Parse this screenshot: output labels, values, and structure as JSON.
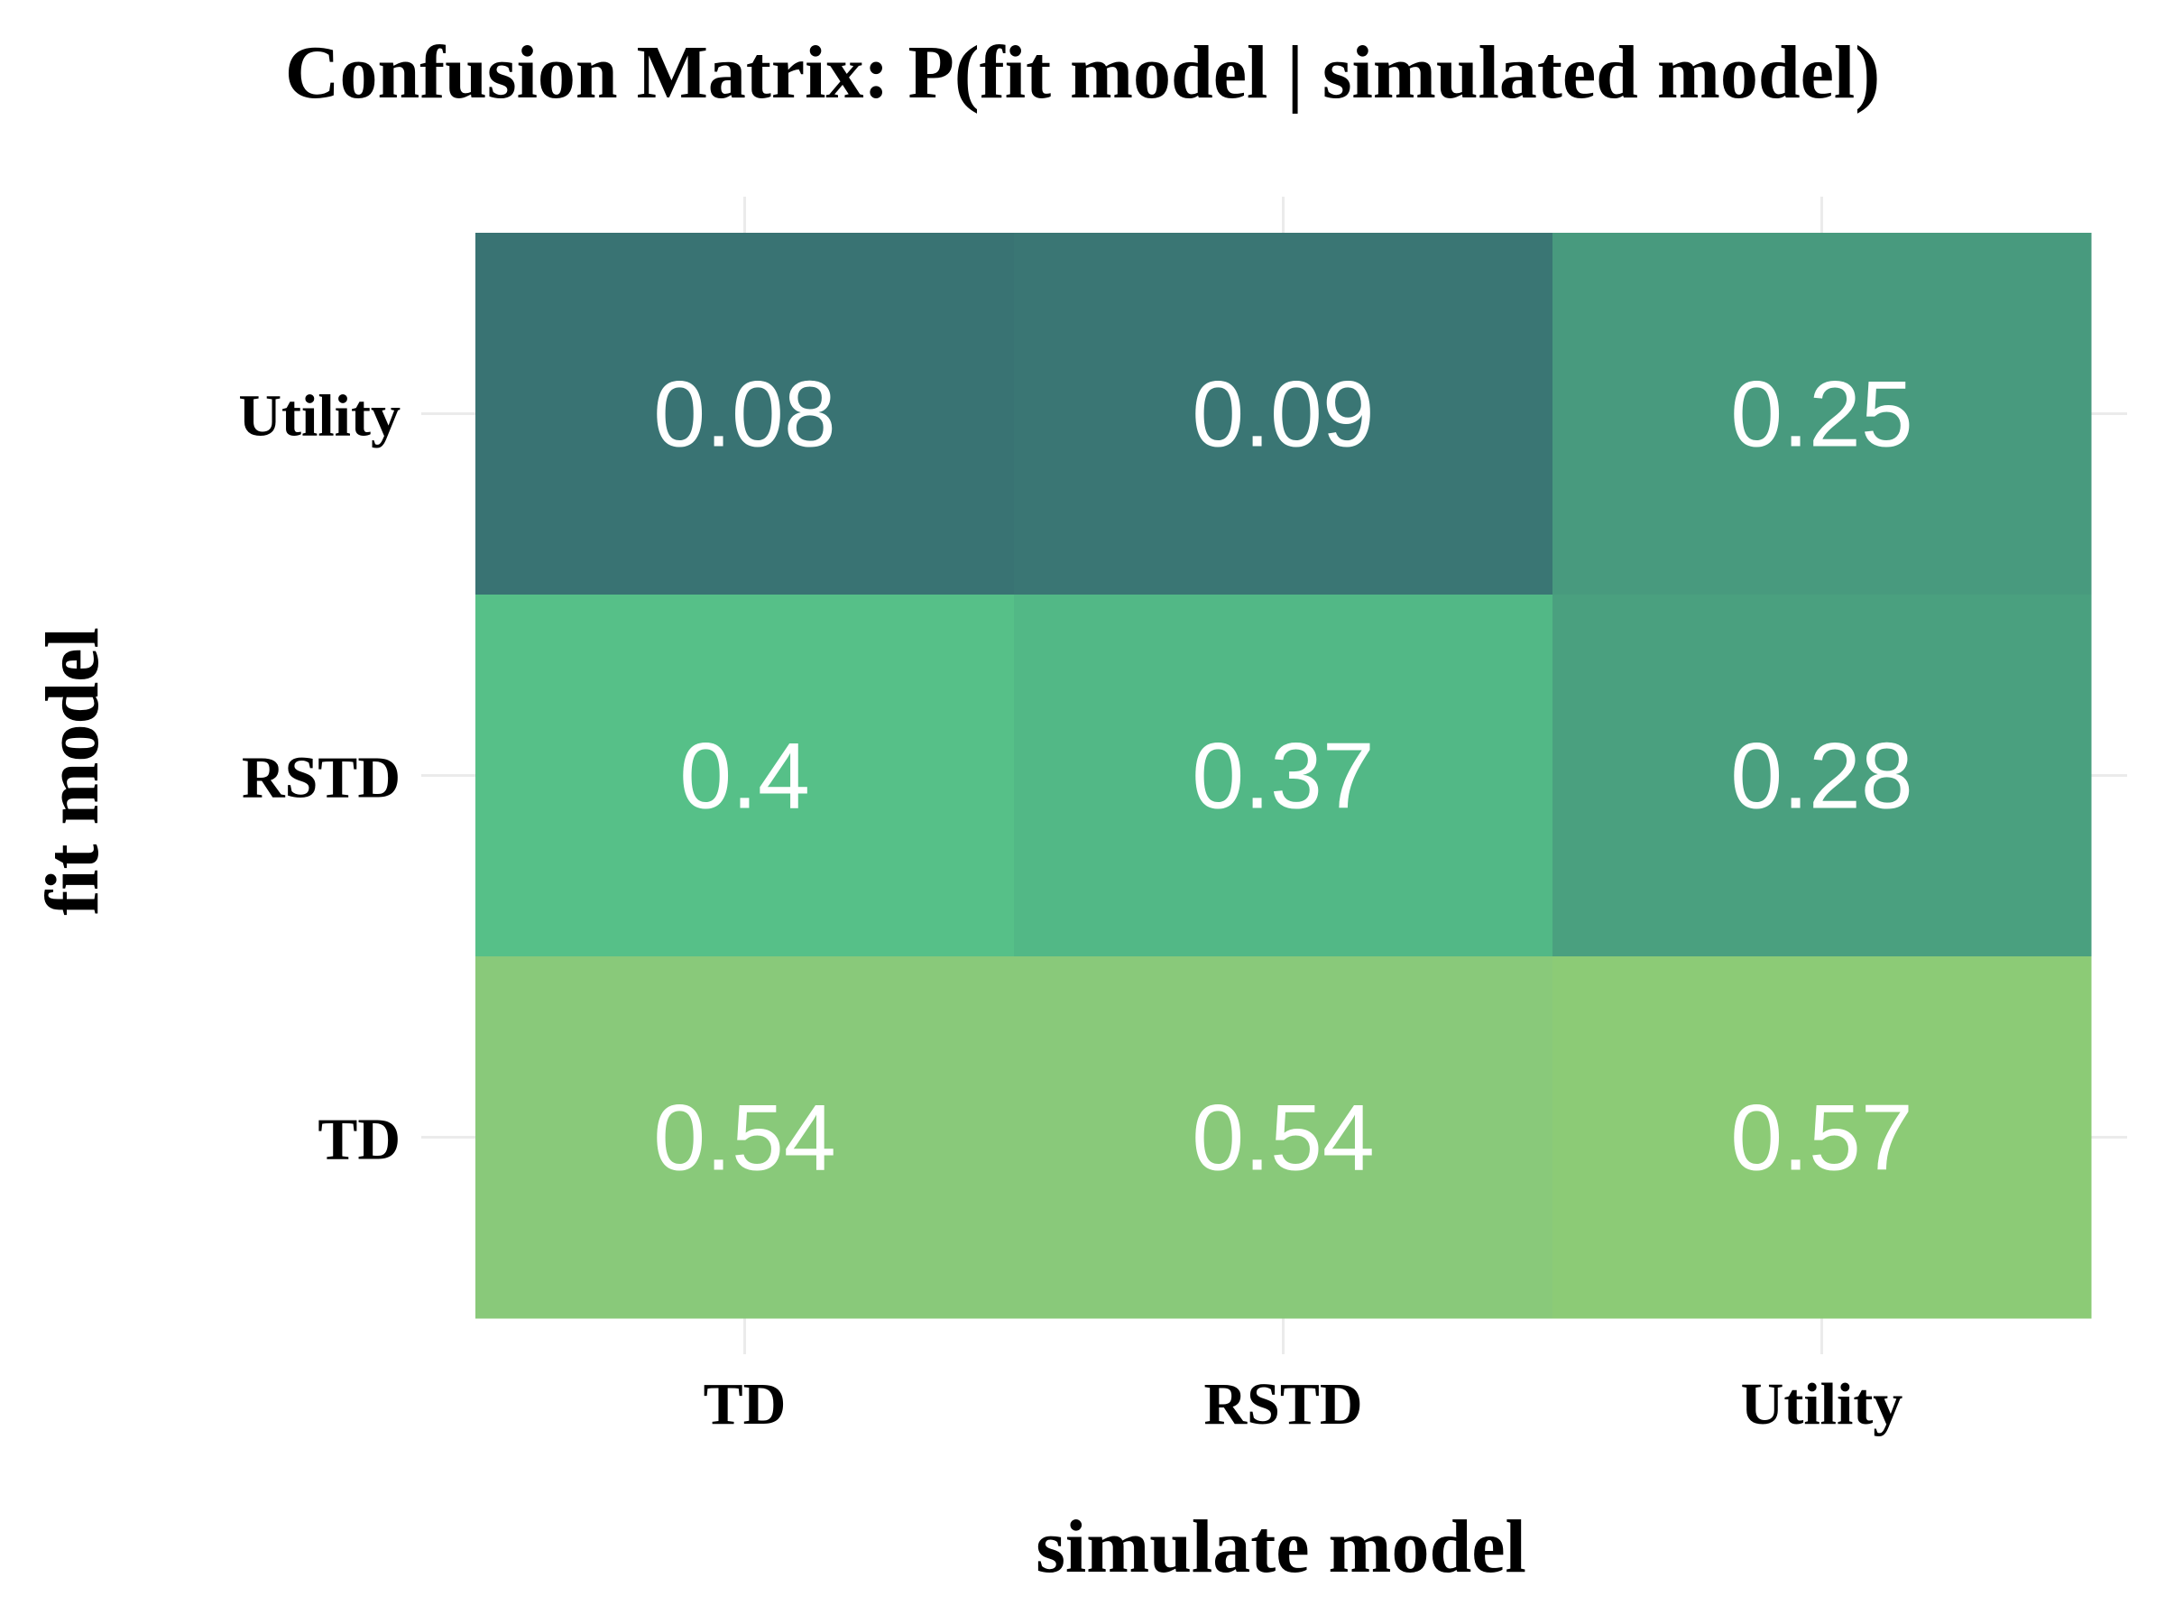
{
  "chart_data": {
    "type": "heatmap",
    "title": "Confusion Matrix: P(fit model | simulated model)",
    "xlabel": "simulate model",
    "ylabel": "fit model",
    "x_categories": [
      "TD",
      "RSTD",
      "Utility"
    ],
    "y_categories": [
      "TD",
      "RSTD",
      "Utility"
    ],
    "cells": [
      {
        "x": "TD",
        "y": "Utility",
        "value": 0.08,
        "label": "0.08",
        "color": "#397373"
      },
      {
        "x": "RSTD",
        "y": "Utility",
        "value": 0.09,
        "label": "0.09",
        "color": "#3a7674"
      },
      {
        "x": "Utility",
        "y": "Utility",
        "value": 0.25,
        "label": "0.25",
        "color": "#489a7e"
      },
      {
        "x": "TD",
        "y": "RSTD",
        "value": 0.4,
        "label": "0.4",
        "color": "#56c088"
      },
      {
        "x": "RSTD",
        "y": "RSTD",
        "value": 0.37,
        "label": "0.37",
        "color": "#52b886"
      },
      {
        "x": "Utility",
        "y": "RSTD",
        "value": 0.28,
        "label": "0.28",
        "color": "#4aa07f"
      },
      {
        "x": "TD",
        "y": "TD",
        "value": 0.54,
        "label": "0.54",
        "color": "#89c97a"
      },
      {
        "x": "RSTD",
        "y": "TD",
        "value": 0.54,
        "label": "0.54",
        "color": "#89c97a"
      },
      {
        "x": "Utility",
        "y": "TD",
        "value": 0.57,
        "label": "0.57",
        "color": "#8ccb76"
      }
    ],
    "grid": true,
    "legend": "none"
  }
}
